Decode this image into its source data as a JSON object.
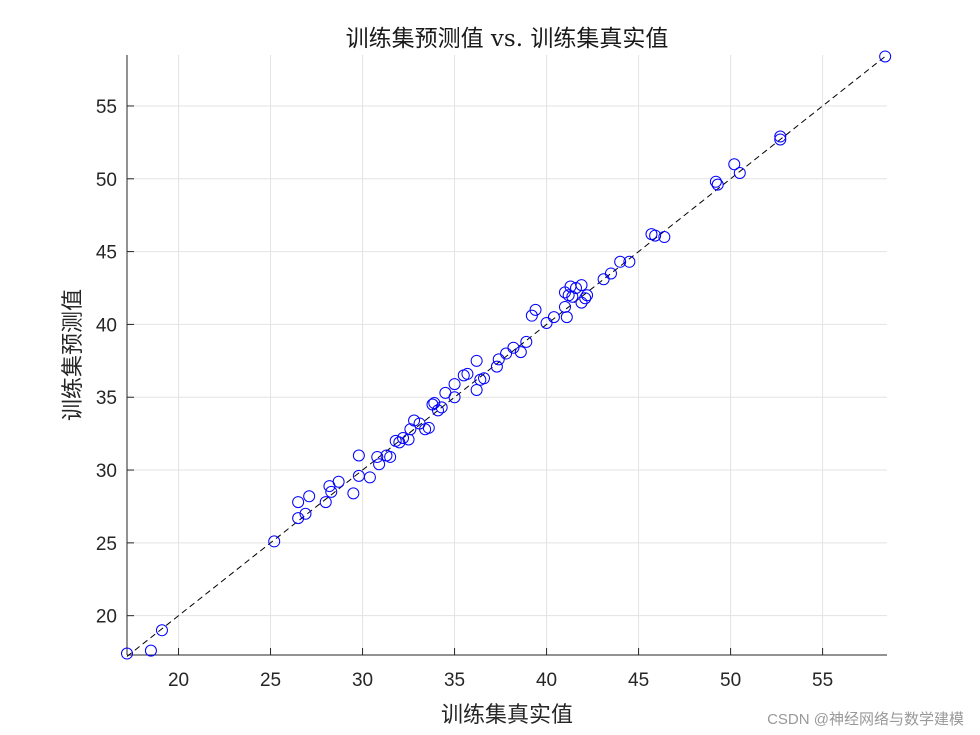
{
  "chart_data": {
    "type": "scatter",
    "title": "训练集预测值 vs. 训练集真实值",
    "xlabel": "训练集真实值",
    "ylabel": "训练集预测值",
    "xlim": [
      17.2,
      58.5
    ],
    "ylim": [
      17.3,
      58.5
    ],
    "xticks": [
      20,
      25,
      30,
      35,
      40,
      45,
      50,
      55
    ],
    "yticks": [
      20,
      25,
      30,
      35,
      40,
      45,
      50,
      55
    ],
    "grid": true,
    "series": [
      {
        "marker": "open-circle",
        "color": "#0000ff",
        "points": [
          [
            17.2,
            17.4
          ],
          [
            18.5,
            17.6
          ],
          [
            19.1,
            19.0
          ],
          [
            25.2,
            25.1
          ],
          [
            26.5,
            26.7
          ],
          [
            26.5,
            27.8
          ],
          [
            26.9,
            27.0
          ],
          [
            27.1,
            28.2
          ],
          [
            28.0,
            27.8
          ],
          [
            28.2,
            28.9
          ],
          [
            28.3,
            28.5
          ],
          [
            28.7,
            29.2
          ],
          [
            29.5,
            28.4
          ],
          [
            29.8,
            31.0
          ],
          [
            29.8,
            29.6
          ],
          [
            30.4,
            29.5
          ],
          [
            30.8,
            30.9
          ],
          [
            30.9,
            30.4
          ],
          [
            31.3,
            31.0
          ],
          [
            31.5,
            30.9
          ],
          [
            31.8,
            32.0
          ],
          [
            32.0,
            31.9
          ],
          [
            32.2,
            32.2
          ],
          [
            32.5,
            32.1
          ],
          [
            32.6,
            32.8
          ],
          [
            32.8,
            33.4
          ],
          [
            33.1,
            33.2
          ],
          [
            33.4,
            32.8
          ],
          [
            33.6,
            32.9
          ],
          [
            33.8,
            34.5
          ],
          [
            33.9,
            34.6
          ],
          [
            34.1,
            34.1
          ],
          [
            34.3,
            34.3
          ],
          [
            34.5,
            35.3
          ],
          [
            35.0,
            35.0
          ],
          [
            35.0,
            35.9
          ],
          [
            35.5,
            36.5
          ],
          [
            35.7,
            36.6
          ],
          [
            36.2,
            35.5
          ],
          [
            36.2,
            37.5
          ],
          [
            36.4,
            36.2
          ],
          [
            36.6,
            36.3
          ],
          [
            37.3,
            37.1
          ],
          [
            37.4,
            37.6
          ],
          [
            37.8,
            38.0
          ],
          [
            38.2,
            38.4
          ],
          [
            38.6,
            38.1
          ],
          [
            38.9,
            38.8
          ],
          [
            39.2,
            40.6
          ],
          [
            39.4,
            41.0
          ],
          [
            40.0,
            40.1
          ],
          [
            40.4,
            40.5
          ],
          [
            41.0,
            41.2
          ],
          [
            41.0,
            42.2
          ],
          [
            41.1,
            40.5
          ],
          [
            41.2,
            42.0
          ],
          [
            41.3,
            42.6
          ],
          [
            41.4,
            41.9
          ],
          [
            41.6,
            42.5
          ],
          [
            41.9,
            42.7
          ],
          [
            41.9,
            41.5
          ],
          [
            42.1,
            41.8
          ],
          [
            42.2,
            42.0
          ],
          [
            43.1,
            43.1
          ],
          [
            43.5,
            43.5
          ],
          [
            44.0,
            44.3
          ],
          [
            44.5,
            44.3
          ],
          [
            45.7,
            46.2
          ],
          [
            45.9,
            46.1
          ],
          [
            46.4,
            46.0
          ],
          [
            49.2,
            49.8
          ],
          [
            49.3,
            49.6
          ],
          [
            50.2,
            51.0
          ],
          [
            50.5,
            50.4
          ],
          [
            52.7,
            52.7
          ],
          [
            52.7,
            52.9
          ],
          [
            58.4,
            58.4
          ]
        ]
      }
    ],
    "reference_line": {
      "from": [
        17.2,
        17.2
      ],
      "to": [
        58.5,
        58.5
      ],
      "style": "dashed",
      "color": "#000000"
    }
  },
  "watermark": "CSDN @神经网络与数学建模"
}
